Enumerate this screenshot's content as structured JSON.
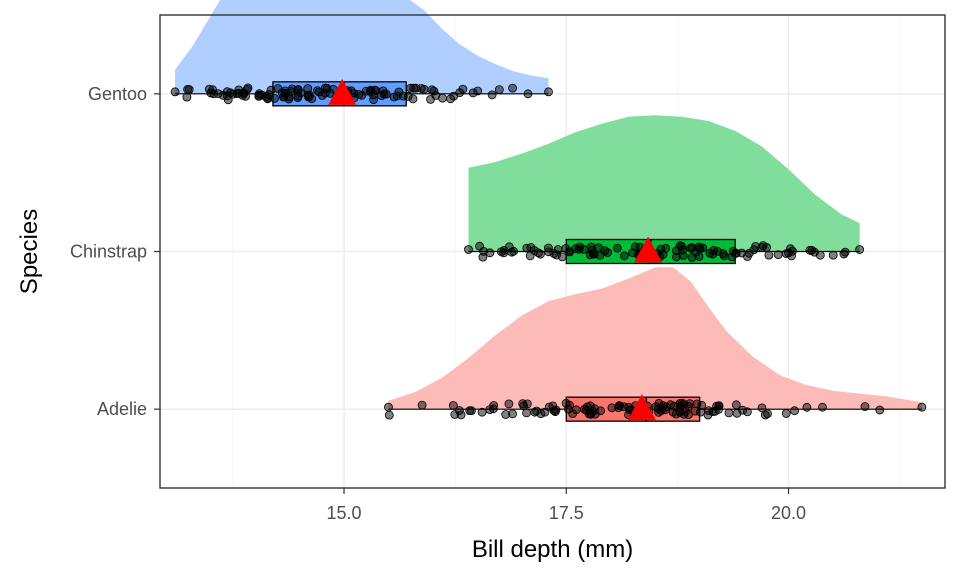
{
  "chart_data": {
    "type": "raincloud",
    "xlabel": "Bill depth (mm)",
    "ylabel": "Species",
    "xlim": [
      12.93,
      21.76
    ],
    "xticks": [
      15.0,
      17.5,
      20.0
    ],
    "xtick_labels": [
      "15.0",
      "17.5",
      "20.0"
    ],
    "categories": [
      "Adelie",
      "Chinstrap",
      "Gentoo"
    ],
    "grid": true,
    "mean_marker": {
      "shape": "triangle",
      "color": "#ff0000"
    },
    "series": [
      {
        "name": "Adelie",
        "color": "#f8766d",
        "min": 15.5,
        "q1": 17.5,
        "median": 18.4,
        "q3": 19.0,
        "max": 21.5,
        "mean": 18.35,
        "density_x": [
          15.5,
          15.8,
          16.1,
          16.4,
          16.7,
          17.0,
          17.3,
          17.6,
          17.9,
          18.2,
          18.5,
          18.7,
          18.9,
          19.1,
          19.3,
          19.6,
          19.9,
          20.2,
          20.5,
          20.8,
          21.1,
          21.5
        ],
        "density_y": [
          0.06,
          0.12,
          0.22,
          0.36,
          0.52,
          0.66,
          0.76,
          0.81,
          0.85,
          0.92,
          1.0,
          1.0,
          0.9,
          0.72,
          0.55,
          0.37,
          0.24,
          0.17,
          0.13,
          0.11,
          0.09,
          0.05
        ]
      },
      {
        "name": "Chinstrap",
        "color": "#00ba38",
        "min": 16.4,
        "q1": 17.5,
        "median": 18.45,
        "q3": 19.4,
        "max": 20.8,
        "mean": 18.42,
        "density_x": [
          16.4,
          16.7,
          17.0,
          17.3,
          17.6,
          17.9,
          18.2,
          18.5,
          18.8,
          19.1,
          19.4,
          19.7,
          20.0,
          20.3,
          20.6,
          20.8
        ],
        "density_y": [
          0.59,
          0.63,
          0.69,
          0.76,
          0.84,
          0.9,
          0.95,
          0.96,
          0.95,
          0.92,
          0.85,
          0.74,
          0.58,
          0.4,
          0.26,
          0.2
        ]
      },
      {
        "name": "Gentoo",
        "color": "#619cff",
        "min": 13.1,
        "q1": 14.2,
        "median": 15.0,
        "q3": 15.7,
        "max": 17.3,
        "mean": 14.98,
        "density_x": [
          13.1,
          13.3,
          13.5,
          13.7,
          13.9,
          14.1,
          14.3,
          14.5,
          14.7,
          14.9,
          15.1,
          15.3,
          15.5,
          15.7,
          15.9,
          16.1,
          16.3,
          16.5,
          16.7,
          16.9,
          17.1,
          17.3
        ],
        "density_y": [
          0.17,
          0.34,
          0.55,
          0.76,
          0.9,
          0.98,
          1.0,
          0.98,
          0.92,
          0.84,
          0.79,
          0.76,
          0.73,
          0.68,
          0.59,
          0.46,
          0.35,
          0.27,
          0.21,
          0.16,
          0.13,
          0.11
        ]
      }
    ]
  }
}
